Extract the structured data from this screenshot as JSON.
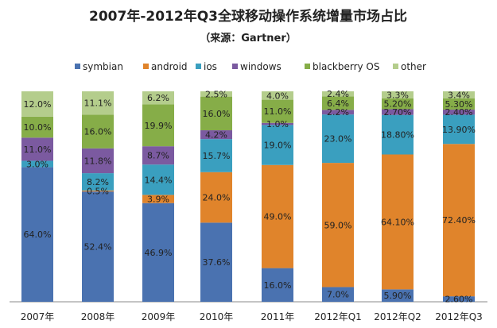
{
  "chart_data": {
    "type": "bar",
    "stacked": "percent",
    "title": "2007年-2012年Q3全球移动操作系统增量市场占比",
    "subtitle": "（来源：Gartner）",
    "legend_position": "top",
    "categories": [
      "2007年",
      "2008年",
      "2009年",
      "2010年",
      "2011年",
      "2012年Q1",
      "2012年Q2",
      "2012年Q3"
    ],
    "series": [
      {
        "name": "symbian",
        "color": "#4a72b0",
        "values": [
          64.0,
          52.4,
          46.9,
          37.6,
          16.0,
          7.0,
          5.9,
          2.6
        ],
        "labels": [
          "64.0%",
          "52.4%",
          "46.9%",
          "37.6%",
          "16.0%",
          "7.0%",
          "5.90%",
          "2.60%"
        ]
      },
      {
        "name": "android",
        "color": "#e0842b",
        "values": [
          0,
          0.5,
          3.9,
          24.0,
          49.0,
          59.0,
          64.1,
          72.4
        ],
        "labels": [
          "",
          "0.5%",
          "3.9%",
          "24.0%",
          "49.0%",
          "59.0%",
          "64.10%",
          "72.40%"
        ]
      },
      {
        "name": "ios",
        "color": "#3a9fbf",
        "values": [
          3.0,
          8.2,
          14.4,
          15.7,
          19.0,
          23.0,
          18.8,
          13.9
        ],
        "labels": [
          "3.0%",
          "8.2%",
          "14.4%",
          "15.7%",
          "19.0%",
          "23.0%",
          "18.80%",
          "13.90%"
        ]
      },
      {
        "name": "windows",
        "color": "#7b5aa0",
        "values": [
          11.0,
          11.8,
          8.7,
          4.2,
          1.0,
          2.2,
          2.7,
          2.4
        ],
        "labels": [
          "11.0%",
          "11.8%",
          "8.7%",
          "4.2%",
          "1.0%",
          "2.2%",
          "2.70%",
          "2.40%"
        ]
      },
      {
        "name": "blackberry OS",
        "color": "#86ad48",
        "values": [
          10.0,
          16.0,
          19.9,
          16.0,
          11.0,
          6.4,
          5.2,
          5.3
        ],
        "labels": [
          "10.0%",
          "16.0%",
          "19.9%",
          "16.0%",
          "11.0%",
          "6.4%",
          "5.20%",
          "5.30%"
        ]
      },
      {
        "name": "other",
        "color": "#b4cd8c",
        "values": [
          12.0,
          11.1,
          6.2,
          2.5,
          4.0,
          2.4,
          3.3,
          3.4
        ],
        "labels": [
          "12.0%",
          "11.1%",
          "6.2%",
          "2.5%",
          "4.0%",
          "2.4%",
          "3.3%",
          "3.4%"
        ]
      }
    ]
  }
}
